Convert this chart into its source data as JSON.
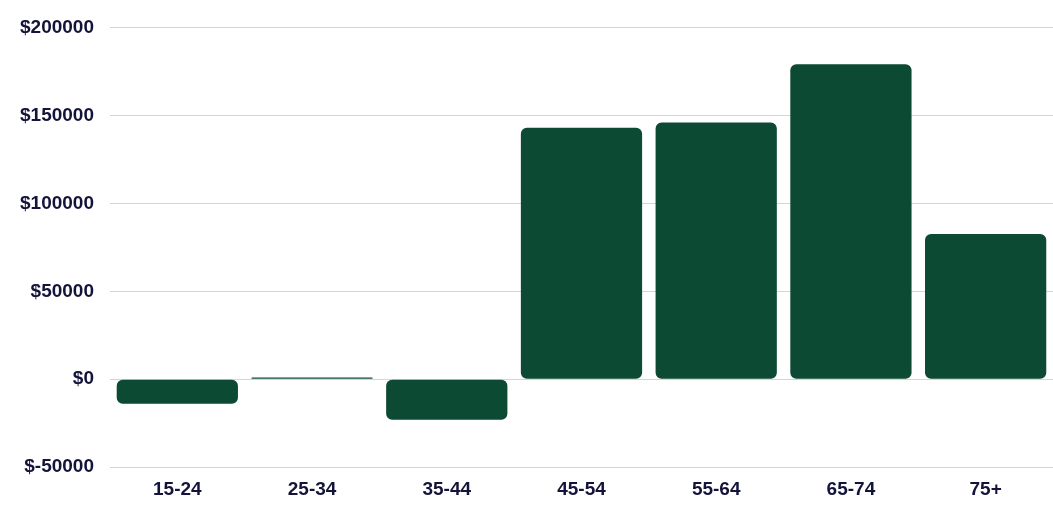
{
  "chart_data": {
    "type": "bar",
    "categories": [
      "15-24",
      "25-34",
      "35-44",
      "45-54",
      "55-64",
      "65-74",
      "75+"
    ],
    "series": [
      {
        "color": "#0d4a33",
        "values": [
          -14000,
          1000,
          -23000,
          143000,
          146000,
          179000,
          82500
        ]
      }
    ],
    "ylim": [
      -50000,
      200000
    ],
    "yticks": [
      {
        "value": -50000,
        "label": "$-50000"
      },
      {
        "value": 0,
        "label": "$0"
      },
      {
        "value": 50000,
        "label": "$50000"
      },
      {
        "value": 100000,
        "label": "$100000"
      },
      {
        "value": 150000,
        "label": "$150000"
      },
      {
        "value": 200000,
        "label": "$200000"
      }
    ],
    "grid": "y",
    "legend": false
  }
}
